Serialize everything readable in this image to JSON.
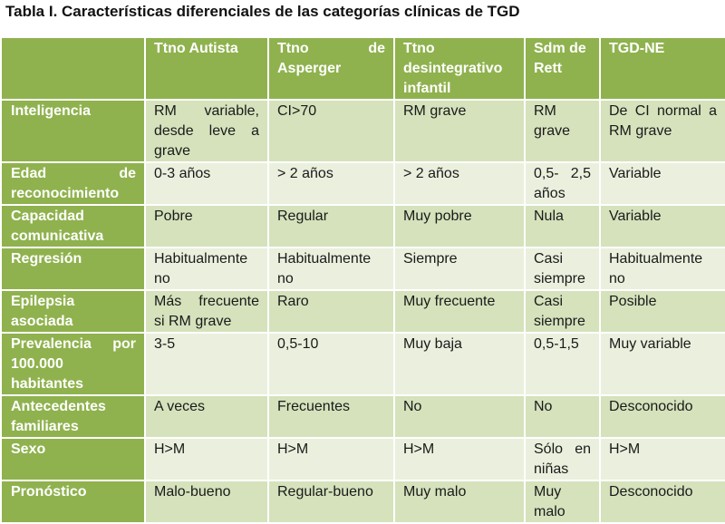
{
  "title": "Tabla I. Características diferenciales de las categorías clínicas de TGD",
  "columns": [
    "Ttno Autista",
    "Ttno de Asperger",
    "Ttno desintegrativo infantil",
    "Sdm de Rett",
    "TGD-NE"
  ],
  "rows": [
    {
      "label": "Inteligencia",
      "cells": [
        "RM variable, desde leve a grave",
        "CI>70",
        "RM grave",
        "RM grave",
        "De CI normal a RM grave"
      ]
    },
    {
      "label": "Edad de reconocimiento",
      "cells": [
        "0-3 años",
        "> 2 años",
        "> 2 años",
        "0,5- 2,5 años",
        "Variable"
      ]
    },
    {
      "label": "Capacidad comunicativa",
      "cells": [
        "Pobre",
        "Regular",
        "Muy pobre",
        "Nula",
        "Variable"
      ]
    },
    {
      "label": "Regresión",
      "cells": [
        "Habitualmente no",
        "Habitualmente no",
        "Siempre",
        "Casi siempre",
        "Habitualmente no"
      ]
    },
    {
      "label": "Epilepsia asociada",
      "cells": [
        "Más frecuente si RM grave",
        "Raro",
        "Muy frecuente",
        "Casi siempre",
        "Posible"
      ]
    },
    {
      "label": "Prevalencia por 100.000 habitantes",
      "cells": [
        "3-5",
        "0,5-10",
        "Muy baja",
        "0,5-1,5",
        "Muy variable"
      ]
    },
    {
      "label": "Antecedentes familiares",
      "cells": [
        "A veces",
        "Frecuentes",
        "No",
        "No",
        "Desconocido"
      ]
    },
    {
      "label": "Sexo",
      "cells": [
        "H>M",
        "H>M",
        "H>M",
        "Sólo en niñas",
        "H>M"
      ]
    },
    {
      "label": "Pronóstico",
      "cells": [
        "Malo-bueno",
        "Regular-bueno",
        "Muy malo",
        "Muy malo",
        "Desconocido"
      ]
    }
  ]
}
